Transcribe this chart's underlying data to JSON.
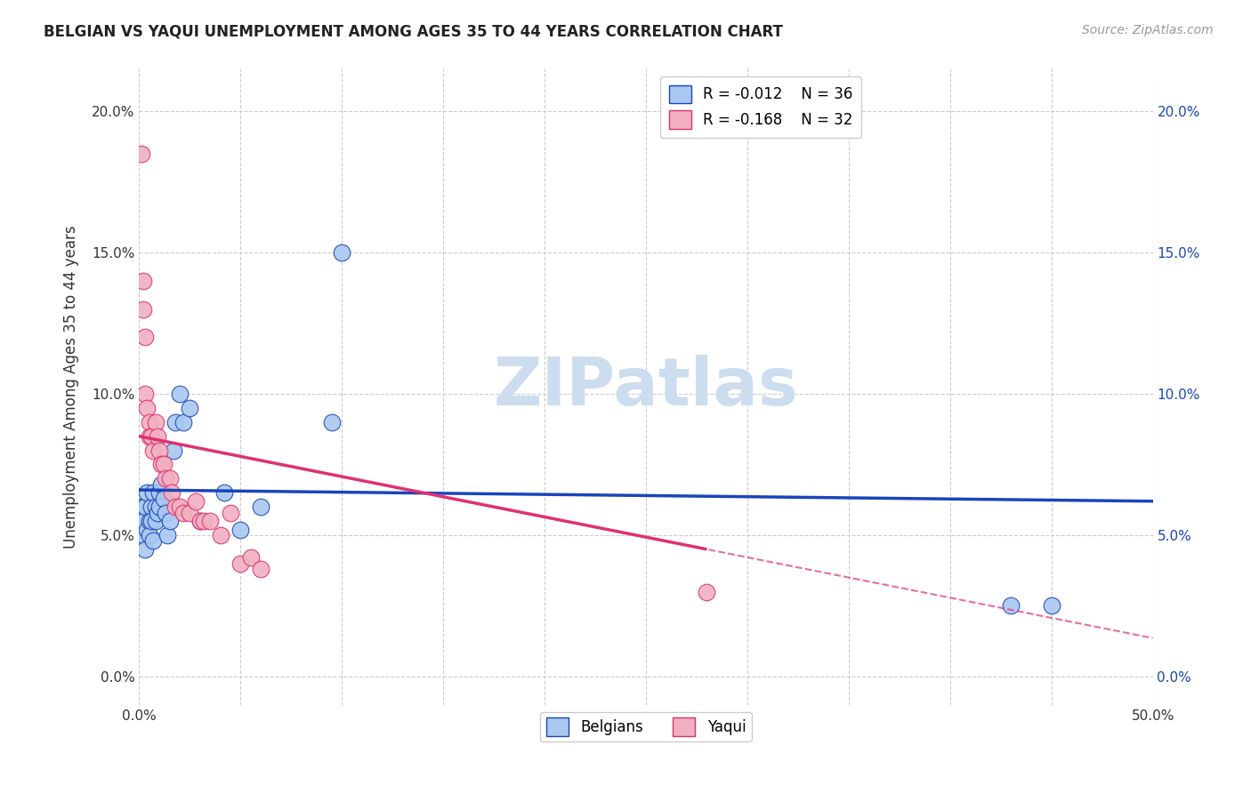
{
  "title": "BELGIAN VS YAQUI UNEMPLOYMENT AMONG AGES 35 TO 44 YEARS CORRELATION CHART",
  "source": "Source: ZipAtlas.com",
  "ylabel": "Unemployment Among Ages 35 to 44 years",
  "xlim": [
    0.0,
    0.5
  ],
  "ylim": [
    -0.01,
    0.215
  ],
  "xticks": [
    0.0,
    0.05,
    0.1,
    0.15,
    0.2,
    0.25,
    0.3,
    0.35,
    0.4,
    0.45,
    0.5
  ],
  "xtick_labels": [
    "0.0%",
    "",
    "",
    "",
    "",
    "",
    "",
    "",
    "",
    "",
    "50.0%"
  ],
  "yticks": [
    0.0,
    0.05,
    0.1,
    0.15,
    0.2
  ],
  "ytick_labels": [
    "0.0%",
    "5.0%",
    "10.0%",
    "15.0%",
    "20.0%"
  ],
  "belgians_x": [
    0.001,
    0.002,
    0.002,
    0.003,
    0.003,
    0.004,
    0.004,
    0.005,
    0.005,
    0.006,
    0.006,
    0.007,
    0.007,
    0.008,
    0.008,
    0.009,
    0.01,
    0.01,
    0.011,
    0.012,
    0.013,
    0.014,
    0.015,
    0.017,
    0.018,
    0.02,
    0.022,
    0.025,
    0.03,
    0.042,
    0.05,
    0.06,
    0.095,
    0.1,
    0.43,
    0.45
  ],
  "belgians_y": [
    0.06,
    0.055,
    0.05,
    0.045,
    0.06,
    0.052,
    0.065,
    0.055,
    0.05,
    0.06,
    0.055,
    0.048,
    0.065,
    0.055,
    0.06,
    0.058,
    0.065,
    0.06,
    0.068,
    0.063,
    0.058,
    0.05,
    0.055,
    0.08,
    0.09,
    0.1,
    0.09,
    0.095,
    0.055,
    0.065,
    0.052,
    0.06,
    0.09,
    0.15,
    0.025,
    0.025
  ],
  "yaqui_x": [
    0.001,
    0.002,
    0.002,
    0.003,
    0.003,
    0.004,
    0.005,
    0.005,
    0.006,
    0.007,
    0.008,
    0.009,
    0.01,
    0.011,
    0.012,
    0.013,
    0.015,
    0.016,
    0.018,
    0.02,
    0.022,
    0.025,
    0.028,
    0.03,
    0.032,
    0.035,
    0.04,
    0.045,
    0.05,
    0.055,
    0.06,
    0.28
  ],
  "yaqui_y": [
    0.185,
    0.14,
    0.13,
    0.12,
    0.1,
    0.095,
    0.09,
    0.085,
    0.085,
    0.08,
    0.09,
    0.085,
    0.08,
    0.075,
    0.075,
    0.07,
    0.07,
    0.065,
    0.06,
    0.06,
    0.058,
    0.058,
    0.062,
    0.055,
    0.055,
    0.055,
    0.05,
    0.058,
    0.04,
    0.042,
    0.038,
    0.03
  ],
  "blue_color": "#a8c8f0",
  "pink_color": "#f0b0c0",
  "trend_blue": "#1a44bb",
  "trend_pink": "#e03070",
  "belgian_R": "-0.012",
  "belgian_N": "36",
  "yaqui_R": "-0.168",
  "yaqui_N": "32",
  "watermark": "ZIPatlas",
  "watermark_color": "#ccddf0",
  "background_color": "#ffffff",
  "grid_color": "#cccccc"
}
